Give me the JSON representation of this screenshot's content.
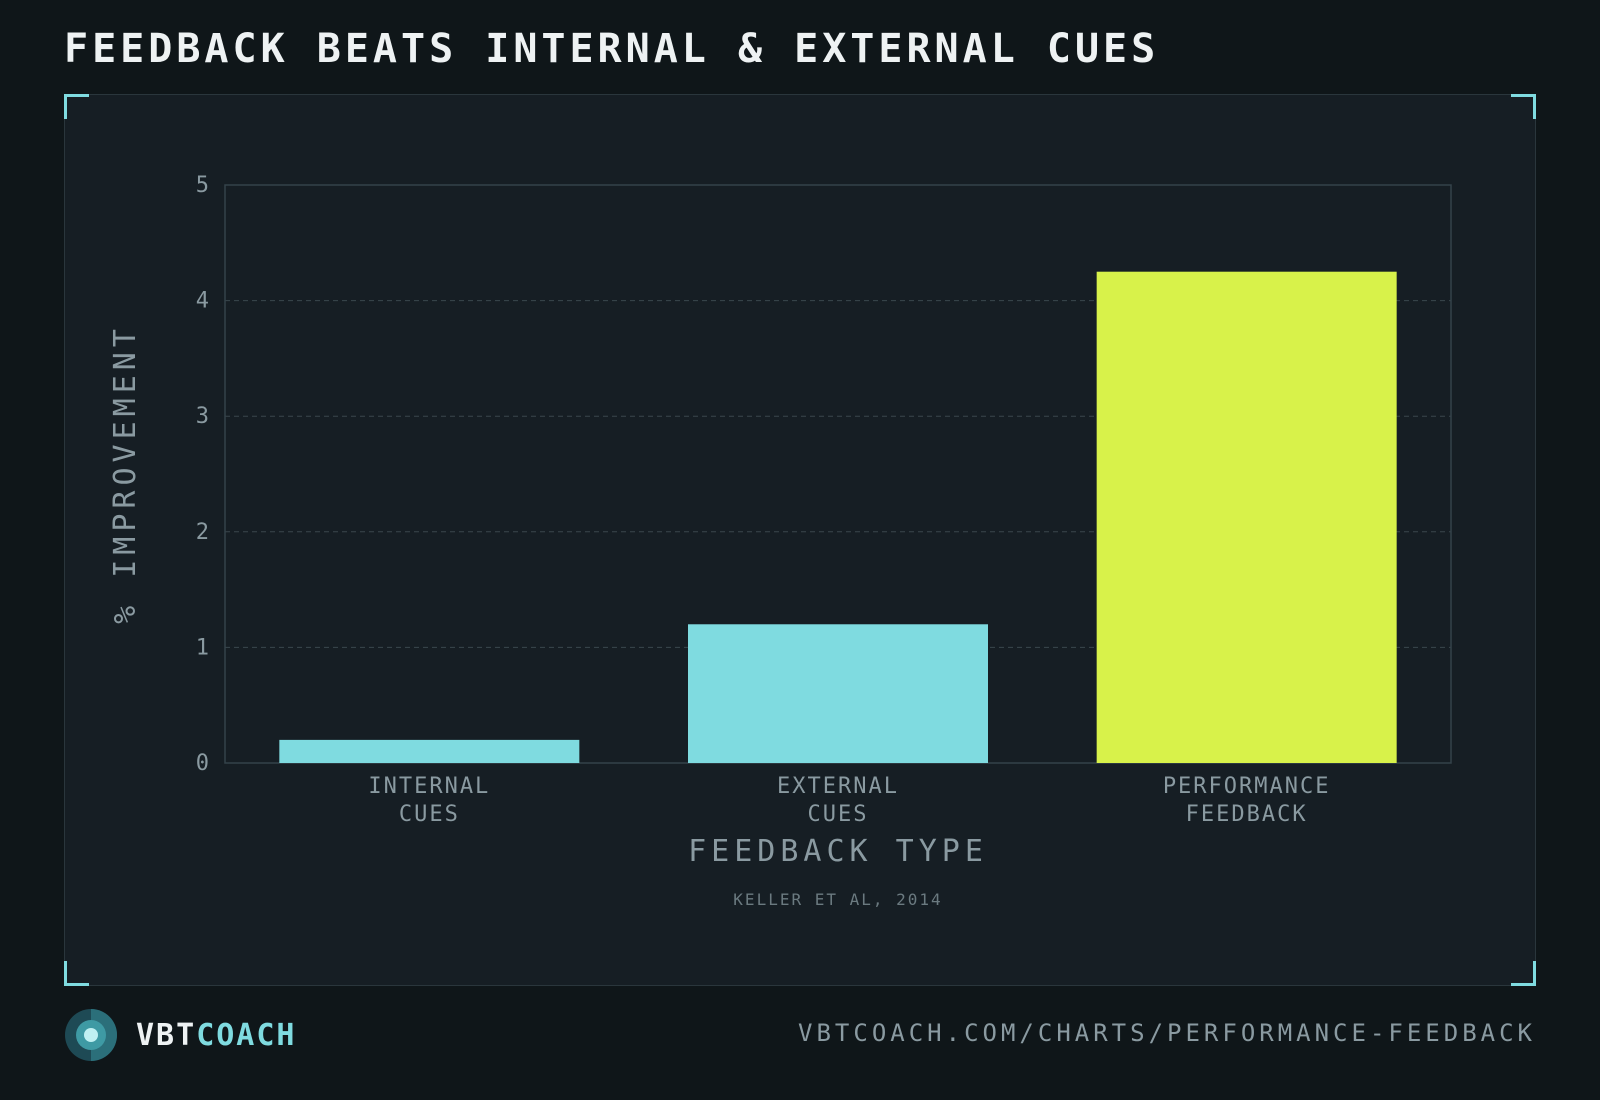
{
  "header": {
    "title": "FEEDBACK BEATS INTERNAL & EXTERNAL CUES"
  },
  "chart_data": {
    "type": "bar",
    "categories": [
      [
        "INTERNAL",
        "CUES"
      ],
      [
        "EXTERNAL",
        "CUES"
      ],
      [
        "PERFORMANCE",
        "FEEDBACK"
      ]
    ],
    "values": [
      0.2,
      1.2,
      4.25
    ],
    "bar_colors": [
      "#7fdbe0",
      "#7fdbe0",
      "#d8f24a"
    ],
    "xlabel": "FEEDBACK TYPE",
    "ylabel": "% IMPROVEMENT",
    "ylim": [
      0,
      5
    ],
    "yticks": [
      0,
      1,
      2,
      3,
      4,
      5
    ],
    "grid": true,
    "source": "KELLER ET AL, 2014"
  },
  "footer": {
    "brand_part1": "VBT",
    "brand_part2": "COACH",
    "url": "VBTCOACH.COM/CHARTS/PERFORMANCE-FEEDBACK"
  },
  "colors": {
    "accent": "#7fdbe0",
    "highlight": "#d8f24a",
    "background": "#0f1619",
    "panel": "#161e24"
  }
}
